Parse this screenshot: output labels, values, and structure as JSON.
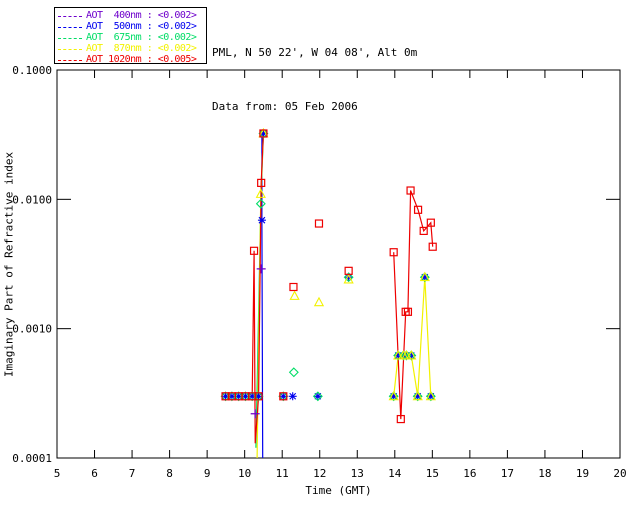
{
  "header": {
    "line1": "PML, N 50 22', W 04 08', Alt 0m",
    "line2": "Data from: 05 Feb 2006"
  },
  "legend": {
    "entries": [
      {
        "label": "AOT  400nm : <0.002>",
        "color": "#6E00CC"
      },
      {
        "label": "AOT  500nm : <0.002>",
        "color": "#0000EE"
      },
      {
        "label": "AOT  675nm : <0.002>",
        "color": "#00DD66"
      },
      {
        "label": "AOT  870nm : <0.002>",
        "color": "#F2F200"
      },
      {
        "label": "AOT 1020nm : <0.005>",
        "color": "#EE0000"
      }
    ]
  },
  "chart_data": {
    "type": "scatter",
    "title": "",
    "xlabel": "Time (GMT)",
    "ylabel": "Imaginary Part of Refractive index",
    "x_axis": {
      "min": 5,
      "max": 20,
      "ticks": [
        5,
        6,
        7,
        8,
        9,
        10,
        11,
        12,
        13,
        14,
        15,
        16,
        17,
        18,
        19,
        20
      ]
    },
    "y_axis": {
      "scale": "log",
      "min": 0.0001,
      "max": 0.1,
      "ticks": [
        {
          "value": 0.1,
          "label": "0.1000"
        },
        {
          "value": 0.01,
          "label": "0.0100"
        },
        {
          "value": 0.001,
          "label": "0.0010"
        },
        {
          "value": 0.0001,
          "label": "0.0001"
        }
      ]
    },
    "grid": false,
    "legend_position": "top-left",
    "series": [
      {
        "name": "AOT 400nm",
        "color": "#6E00CC",
        "marker": "plus",
        "markers": [
          [
            10.28,
            0.00022
          ],
          [
            10.44,
            0.0029
          ]
        ],
        "lines": []
      },
      {
        "name": "AOT 500nm",
        "color": "#0000EE",
        "marker": "asterisk",
        "markers": [
          [
            9.49,
            0.0003
          ],
          [
            9.66,
            0.0003
          ],
          [
            9.84,
            0.0003
          ],
          [
            10.02,
            0.0003
          ],
          [
            10.2,
            0.0003
          ],
          [
            10.37,
            0.0003
          ],
          [
            10.46,
            0.0069
          ],
          [
            10.5,
            0.0323
          ],
          [
            11.03,
            0.0003
          ],
          [
            11.28,
            0.0003
          ],
          [
            11.95,
            0.0003
          ],
          [
            12.77,
            0.0025
          ],
          [
            13.97,
            0.0003
          ],
          [
            14.09,
            0.00062
          ],
          [
            14.23,
            0.00062
          ],
          [
            14.31,
            0.00062
          ],
          [
            14.44,
            0.00062
          ],
          [
            14.61,
            0.0003
          ],
          [
            14.8,
            0.0025
          ],
          [
            14.96,
            0.0003
          ]
        ],
        "lines": [
          [
            [
              10.46,
              0.0323
            ],
            [
              10.46,
              0.0069
            ],
            [
              10.48,
              0.0001
            ]
          ]
        ]
      },
      {
        "name": "AOT 675nm",
        "color": "#00DD66",
        "marker": "diamond",
        "markers": [
          [
            9.49,
            0.0003
          ],
          [
            9.66,
            0.0003
          ],
          [
            9.84,
            0.0003
          ],
          [
            10.02,
            0.0003
          ],
          [
            10.2,
            0.0003
          ],
          [
            10.37,
            0.0003
          ],
          [
            10.43,
            0.00925
          ],
          [
            10.5,
            0.0323
          ],
          [
            11.03,
            0.0003
          ],
          [
            11.31,
            0.00046
          ],
          [
            11.95,
            0.0003
          ],
          [
            12.77,
            0.0025
          ],
          [
            13.97,
            0.0003
          ],
          [
            14.09,
            0.00062
          ],
          [
            14.23,
            0.00062
          ],
          [
            14.31,
            0.00062
          ],
          [
            14.44,
            0.00062
          ],
          [
            14.61,
            0.0003
          ],
          [
            14.8,
            0.0025
          ],
          [
            14.96,
            0.0003
          ]
        ],
        "lines": [
          [
            [
              10.3,
              0.00012
            ],
            [
              10.43,
              0.00925
            ],
            [
              10.5,
              0.0323
            ]
          ]
        ]
      },
      {
        "name": "AOT 870nm",
        "color": "#F2F200",
        "marker": "triangle",
        "markers": [
          [
            10.43,
            0.011
          ],
          [
            10.5,
            0.0323
          ],
          [
            11.33,
            0.00179
          ],
          [
            11.98,
            0.0016
          ],
          [
            12.77,
            0.0024
          ],
          [
            13.97,
            0.0003
          ],
          [
            14.09,
            0.00062
          ],
          [
            14.23,
            0.00062
          ],
          [
            14.31,
            0.00062
          ],
          [
            14.44,
            0.00062
          ],
          [
            14.61,
            0.0003
          ],
          [
            14.8,
            0.0025
          ],
          [
            14.96,
            0.0003
          ]
        ],
        "lines": [
          [
            [
              10.33,
              0.0001
            ],
            [
              10.43,
              0.011
            ],
            [
              10.5,
              0.0323
            ]
          ],
          [
            [
              13.97,
              0.0003
            ],
            [
              14.09,
              0.00062
            ],
            [
              14.23,
              0.00062
            ],
            [
              14.31,
              0.00062
            ],
            [
              14.44,
              0.00062
            ],
            [
              14.61,
              0.0003
            ],
            [
              14.8,
              0.0025
            ],
            [
              14.96,
              0.0003
            ]
          ]
        ]
      },
      {
        "name": "AOT 1020nm",
        "color": "#EE0000",
        "marker": "square",
        "markers": [
          [
            9.49,
            0.0003
          ],
          [
            9.66,
            0.0003
          ],
          [
            9.84,
            0.0003
          ],
          [
            10.02,
            0.0003
          ],
          [
            10.2,
            0.0003
          ],
          [
            10.25,
            0.004
          ],
          [
            10.37,
            0.0003
          ],
          [
            10.44,
            0.0134
          ],
          [
            10.5,
            0.0323
          ],
          [
            11.03,
            0.0003
          ],
          [
            11.3,
            0.0021
          ],
          [
            11.98,
            0.0065
          ],
          [
            12.77,
            0.0028
          ],
          [
            13.97,
            0.0039
          ],
          [
            14.16,
            0.0002
          ],
          [
            14.29,
            0.00135
          ],
          [
            14.35,
            0.00135
          ],
          [
            14.42,
            0.0117
          ],
          [
            14.62,
            0.0083
          ],
          [
            14.77,
            0.0057
          ],
          [
            14.96,
            0.0066
          ],
          [
            15.01,
            0.0043
          ]
        ],
        "lines": [
          [
            [
              9.49,
              0.0003
            ],
            [
              9.66,
              0.0003
            ],
            [
              9.84,
              0.0003
            ],
            [
              10.02,
              0.0003
            ],
            [
              10.2,
              0.0003
            ],
            [
              10.25,
              0.004
            ],
            [
              10.28,
              0.00013
            ],
            [
              10.37,
              0.0003
            ],
            [
              10.44,
              0.0134
            ],
            [
              10.5,
              0.0323
            ]
          ],
          [
            [
              13.97,
              0.0039
            ],
            [
              14.16,
              0.0002
            ],
            [
              14.29,
              0.00135
            ],
            [
              14.35,
              0.00135
            ],
            [
              14.42,
              0.0117
            ],
            [
              14.62,
              0.0083
            ],
            [
              14.77,
              0.0057
            ],
            [
              14.96,
              0.0066
            ],
            [
              15.01,
              0.0043
            ]
          ]
        ]
      }
    ]
  }
}
